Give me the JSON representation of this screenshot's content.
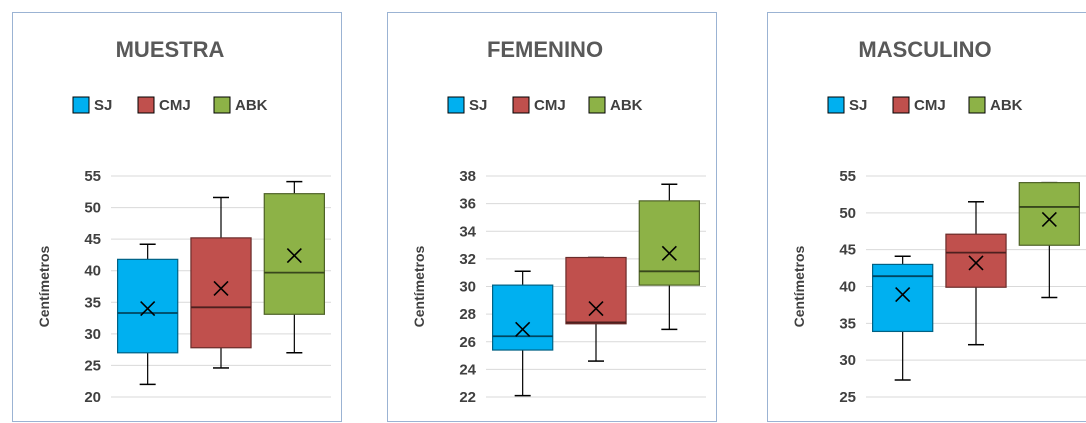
{
  "chart_data": [
    {
      "type": "boxplot",
      "title": "MUESTRA",
      "ylabel": "Centímetros",
      "ylim": [
        20,
        55
      ],
      "yticks": [
        20,
        25,
        30,
        35,
        40,
        45,
        50,
        55
      ],
      "legend": "top",
      "series": [
        {
          "name": "SJ",
          "color": "#00b0f0",
          "min": 22,
          "q1": 27,
          "median": 33.3,
          "q3": 41.8,
          "max": 44.2,
          "mean": 34
        },
        {
          "name": "CMJ",
          "color": "#c0504d",
          "min": 24.6,
          "q1": 27.8,
          "median": 34.2,
          "q3": 45.2,
          "max": 51.6,
          "mean": 37.2
        },
        {
          "name": "ABK",
          "color": "#8db247",
          "min": 27,
          "q1": 33.1,
          "median": 39.7,
          "q3": 52.2,
          "max": 54.1,
          "mean": 42.4
        }
      ]
    },
    {
      "type": "boxplot",
      "title": "FEMENINO",
      "ylabel": "Centímetros",
      "ylim": [
        22,
        38
      ],
      "yticks": [
        22,
        24,
        26,
        28,
        30,
        32,
        34,
        36,
        38
      ],
      "legend": "top",
      "series": [
        {
          "name": "SJ",
          "color": "#00b0f0",
          "min": 22.1,
          "q1": 25.4,
          "median": 26.4,
          "q3": 30.1,
          "max": 31.1,
          "mean": 26.9
        },
        {
          "name": "CMJ",
          "color": "#c0504d",
          "min": 24.6,
          "q1": 27.3,
          "median": 27.4,
          "q3": 32.1,
          "max": 32.1,
          "mean": 28.4
        },
        {
          "name": "ABK",
          "color": "#8db247",
          "min": 26.9,
          "q1": 30.1,
          "median": 31.1,
          "q3": 36.2,
          "max": 37.4,
          "mean": 32.4
        }
      ]
    },
    {
      "type": "boxplot",
      "title": "MASCULINO",
      "ylabel": "Centímetros",
      "ylim": [
        25,
        55
      ],
      "yticks": [
        25,
        30,
        35,
        40,
        45,
        50,
        55
      ],
      "legend": "top",
      "series": [
        {
          "name": "SJ",
          "color": "#00b0f0",
          "min": 27.3,
          "q1": 33.9,
          "median": 41.4,
          "q3": 43,
          "max": 44.1,
          "mean": 38.9
        },
        {
          "name": "CMJ",
          "color": "#c0504d",
          "min": 32.1,
          "q1": 39.9,
          "median": 44.6,
          "q3": 47.1,
          "max": 51.5,
          "mean": 43.2
        },
        {
          "name": "ABK",
          "color": "#8db247",
          "min": 38.5,
          "q1": 45.6,
          "median": 50.8,
          "q3": 54.1,
          "max": 54.1,
          "mean": 49.1
        }
      ]
    }
  ]
}
